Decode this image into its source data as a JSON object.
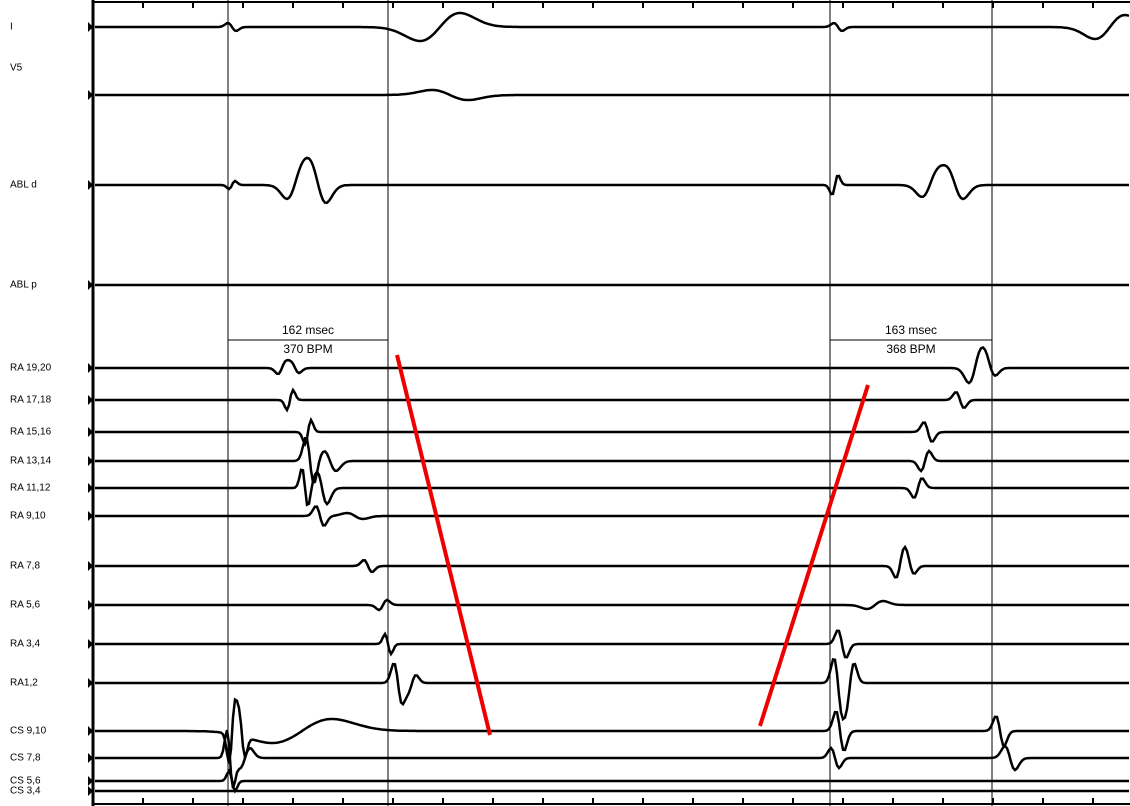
{
  "channels": [
    {
      "label": "I"
    },
    {
      "label": "V5"
    },
    {
      "label": "ABL d"
    },
    {
      "label": "ABL p"
    },
    {
      "label": "RA 19,20"
    },
    {
      "label": "RA 17,18"
    },
    {
      "label": "RA 15,16"
    },
    {
      "label": "RA 13,14"
    },
    {
      "label": "RA 11,12"
    },
    {
      "label": "RA 9,10"
    },
    {
      "label": "RA 7,8"
    },
    {
      "label": "RA 5,6"
    },
    {
      "label": "RA 3,4"
    },
    {
      "label": "RA1,2"
    },
    {
      "label": "CS 9,10"
    },
    {
      "label": "CS 7,8"
    },
    {
      "label": "CS 5,6"
    },
    {
      "label": "CS 3,4"
    }
  ],
  "calipers": [
    {
      "interval": "162 msec",
      "rate": "370 BPM"
    },
    {
      "interval": "163 msec",
      "rate": "368 BPM"
    }
  ]
}
